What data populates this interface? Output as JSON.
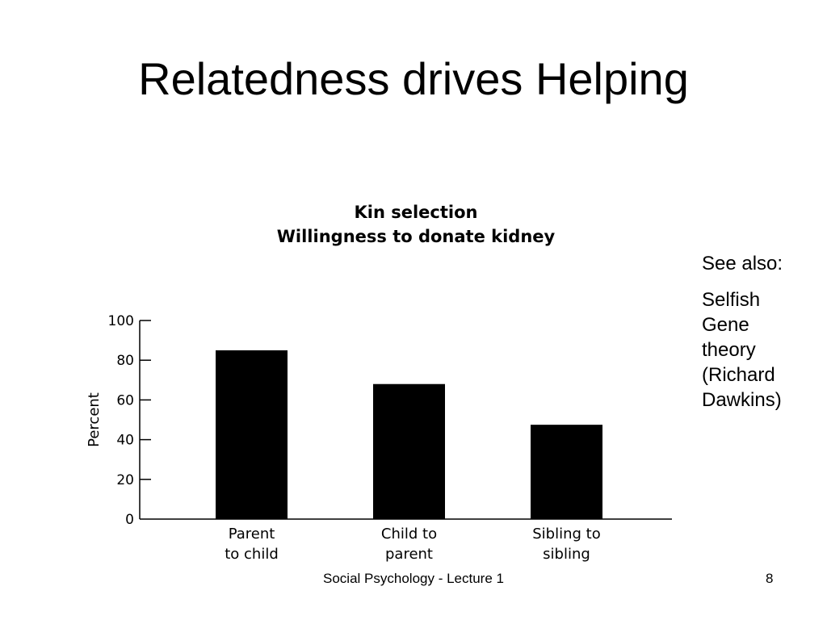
{
  "slide": {
    "title": "Relatedness drives Helping",
    "sidebar": {
      "heading": "See also:",
      "note_lines": [
        "Selfish",
        "Gene",
        "theory",
        "(Richard",
        "Dawkins)"
      ]
    },
    "footer": "Social Psychology - Lecture 1",
    "page_number": "8"
  },
  "chart_data": {
    "type": "bar",
    "title": [
      "Kin selection",
      "Willingness to donate kidney"
    ],
    "categories": [
      [
        "Parent",
        "to child"
      ],
      [
        "Child to",
        "parent"
      ],
      [
        "Sibling to",
        "sibling"
      ]
    ],
    "values": [
      85,
      68,
      47.5
    ],
    "ylabel": "Percent",
    "xlabel": "",
    "ylim": [
      0,
      100
    ],
    "yticks": [
      0,
      20,
      40,
      60,
      80,
      100
    ],
    "grid": false,
    "bar_color": "#000000"
  }
}
